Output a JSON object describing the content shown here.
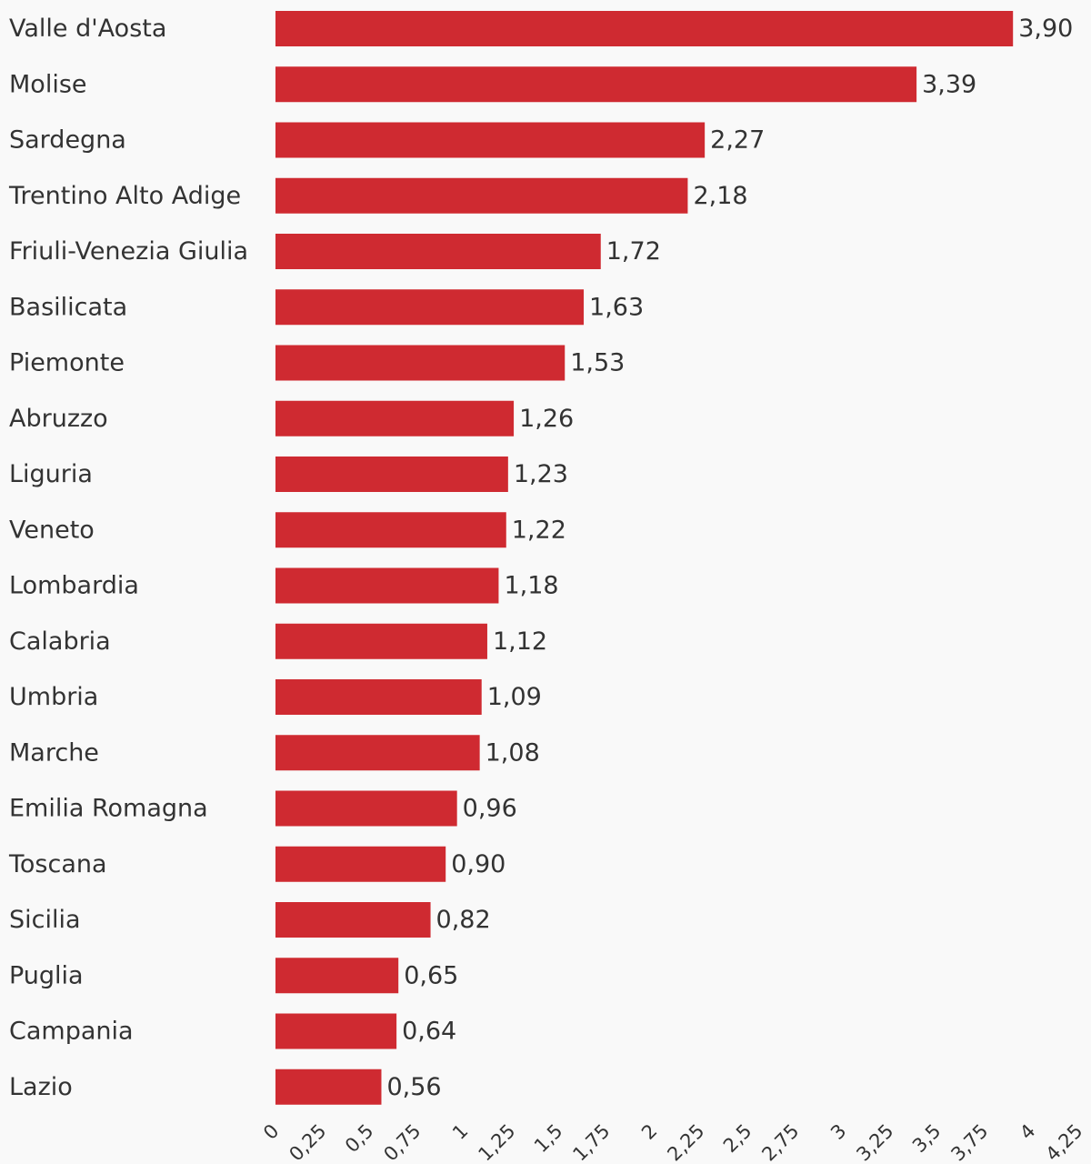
{
  "chart_data": {
    "type": "bar",
    "orientation": "horizontal",
    "categories": [
      "Valle d'Aosta",
      "Molise",
      "Sardegna",
      "Trentino Alto Adige",
      "Friuli-Venezia Giulia",
      "Basilicata",
      "Piemonte",
      "Abruzzo",
      "Liguria",
      "Veneto",
      "Lombardia",
      "Calabria",
      "Umbria",
      "Marche",
      "Emilia Romagna",
      "Toscana",
      "Sicilia",
      "Puglia",
      "Campania",
      "Lazio"
    ],
    "values": [
      3.9,
      3.39,
      2.27,
      2.18,
      1.72,
      1.63,
      1.53,
      1.26,
      1.23,
      1.22,
      1.18,
      1.12,
      1.09,
      1.08,
      0.96,
      0.9,
      0.82,
      0.65,
      0.64,
      0.56
    ],
    "value_labels": [
      "3,90",
      "3,39",
      "2,27",
      "2,18",
      "1,72",
      "1,63",
      "1,53",
      "1,26",
      "1,23",
      "1,22",
      "1,18",
      "1,12",
      "1,09",
      "1,08",
      "0,96",
      "0,90",
      "0,82",
      "0,65",
      "0,64",
      "0,56"
    ],
    "x_ticks": [
      0,
      0.25,
      0.5,
      0.75,
      1,
      1.25,
      1.5,
      1.75,
      2,
      2.25,
      2.5,
      2.75,
      3,
      3.25,
      3.5,
      3.75,
      4,
      4.25
    ],
    "x_tick_labels": [
      "0",
      "0,25",
      "0,5",
      "0,75",
      "1",
      "1,25",
      "1,5",
      "1,75",
      "2",
      "2,25",
      "2,5",
      "2,75",
      "3",
      "3,25",
      "3,5",
      "3,75",
      "4",
      "4,25"
    ],
    "xlim": [
      0,
      4.25
    ],
    "title": "",
    "xlabel": "",
    "ylabel": "",
    "grid": false,
    "legend": "none",
    "colors": {
      "bar": "#cf2a31",
      "text": "#333333",
      "background": "#f9f9f9"
    }
  }
}
